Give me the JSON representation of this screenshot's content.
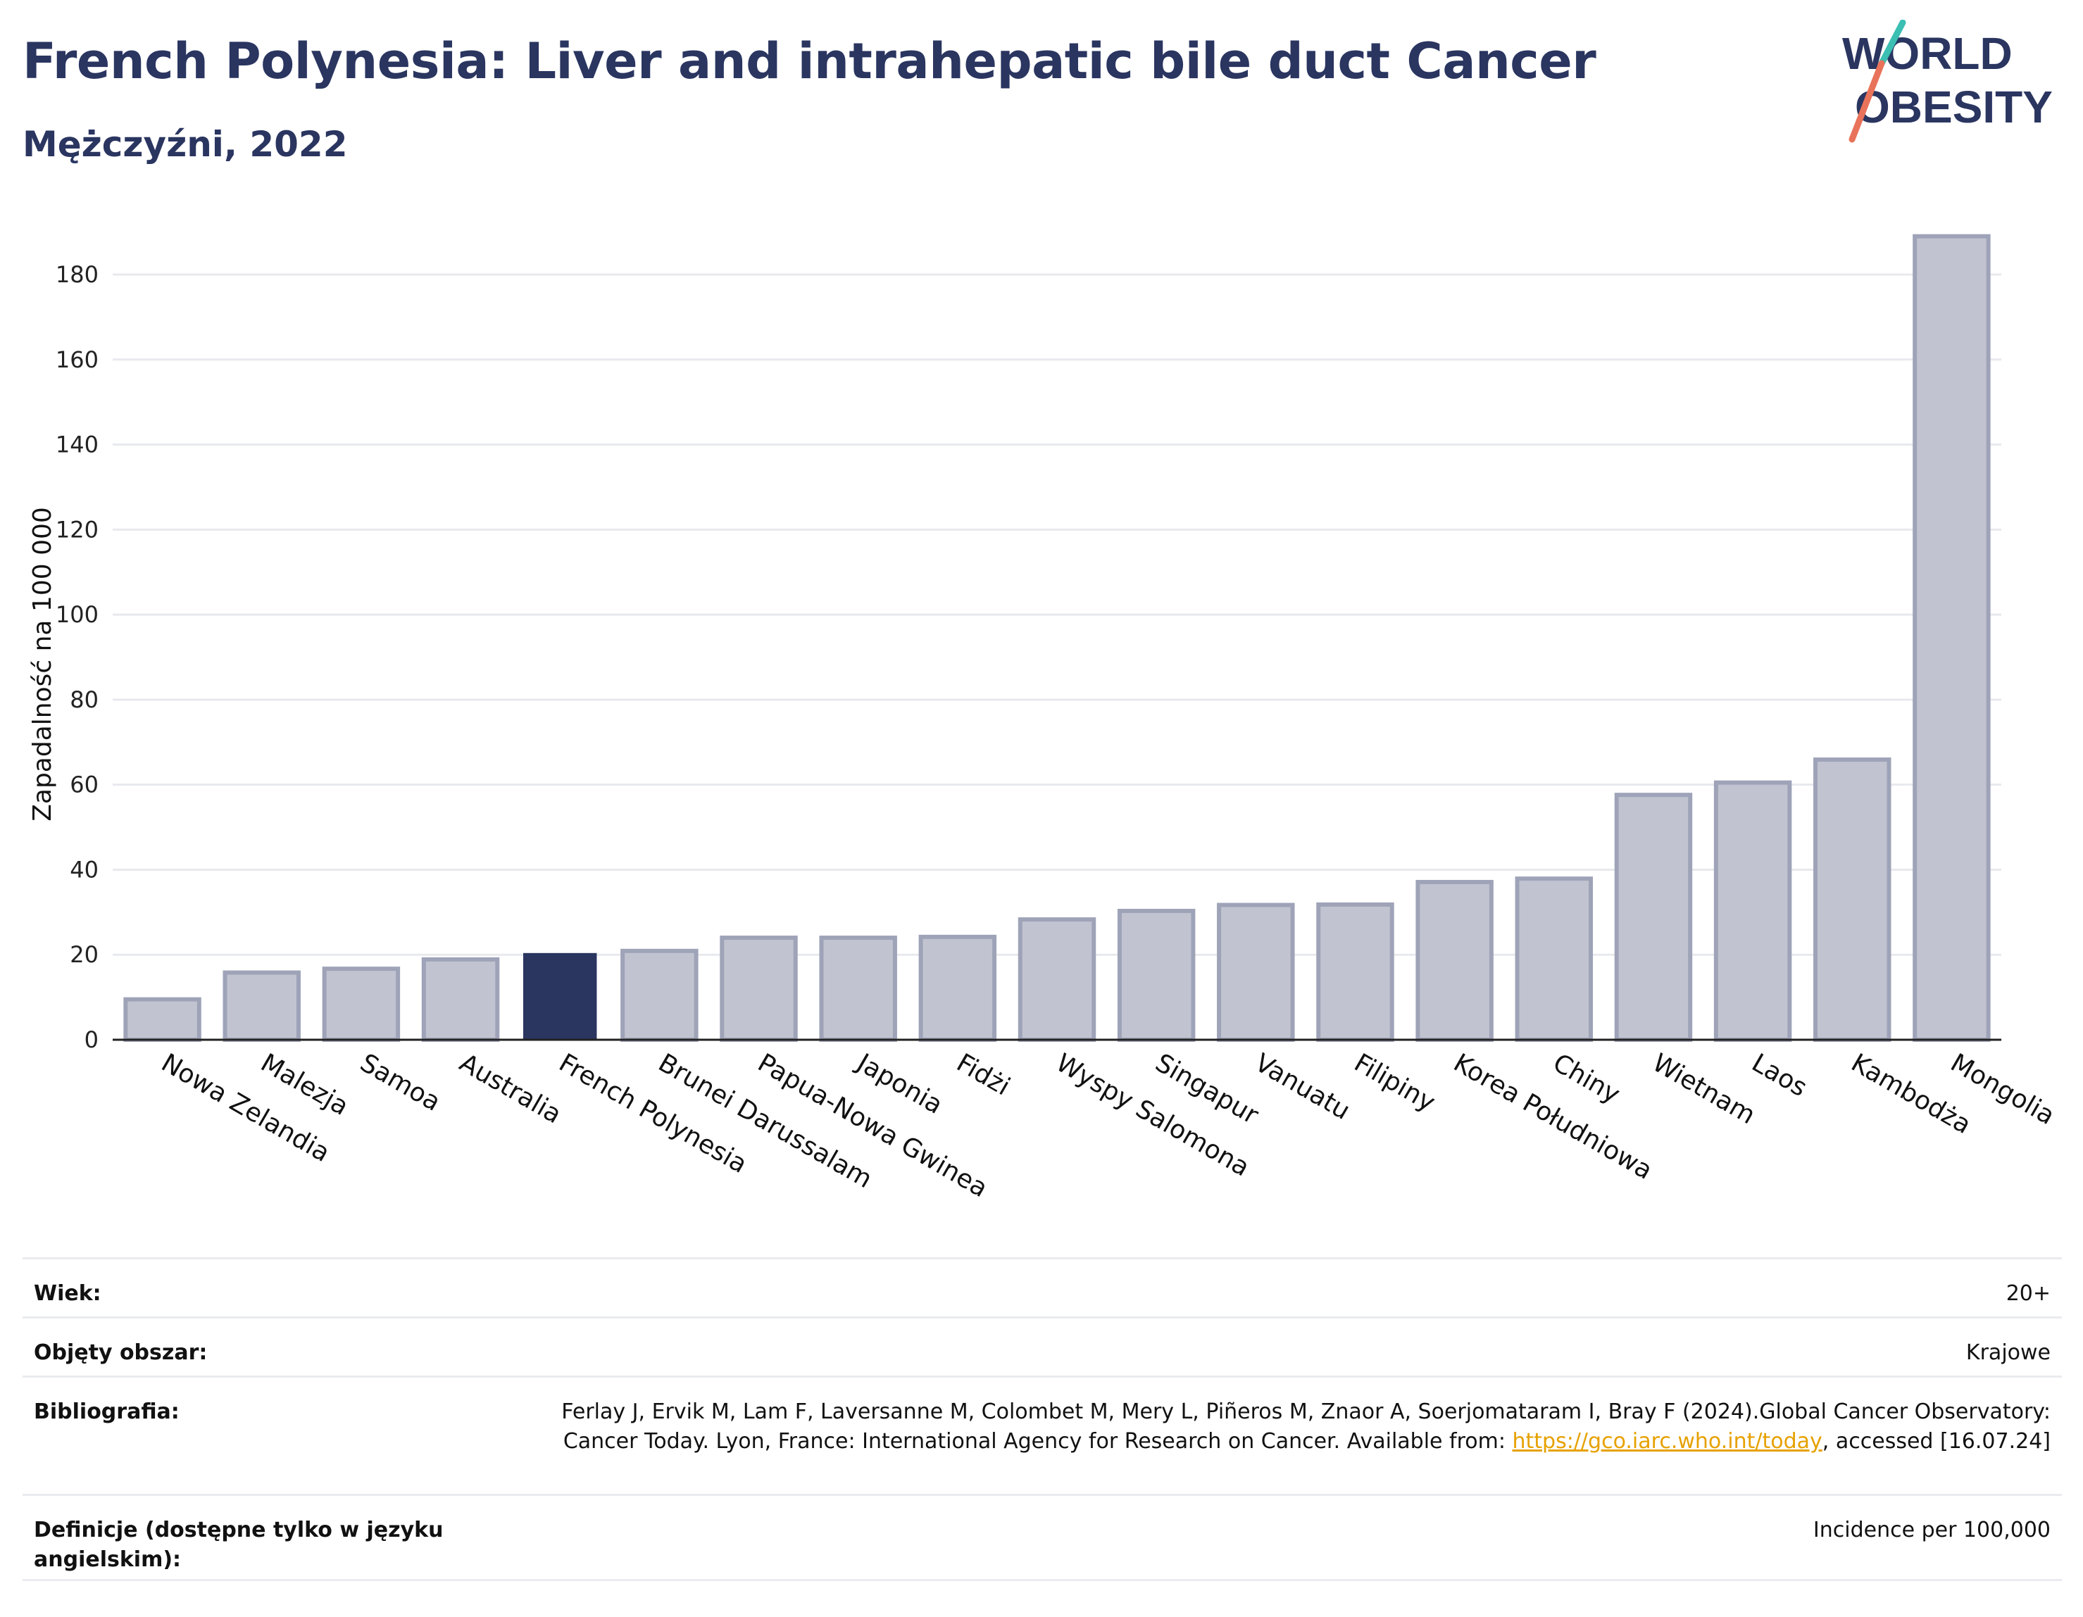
{
  "title": "French Polynesia: Liver and intrahepatic bile duct Cancer",
  "subtitle": "Mężczyźni, 2022",
  "logo": {
    "line1": "WORLD",
    "line2": "OBESITY",
    "colors": {
      "text": "#2a3560",
      "slash_teal": "#3bbfb2",
      "slash_coral": "#e8735a"
    }
  },
  "colors": {
    "highlight": "#2a3560",
    "bar_fill": "#c1c4d0",
    "bar_stroke": "#9ea3b8",
    "grid": "#e8e9ee",
    "axis": "#222222"
  },
  "chart_data": {
    "type": "bar",
    "ylabel": "Zapadalność na 100 000",
    "xlabel": "",
    "ylim": [
      0,
      190
    ],
    "yticks": [
      0,
      20,
      40,
      60,
      80,
      100,
      120,
      140,
      160,
      180
    ],
    "grid": true,
    "highlight": "French Polynesia",
    "categories": [
      "Nowa Zelandia",
      "Malezja",
      "Samoa",
      "Australia",
      "French Polynesia",
      "Brunei Darussalam",
      "Papua-Nowa Gwinea",
      "Japonia",
      "Fidżi",
      "Wyspy Salomona",
      "Singapur",
      "Vanuatu",
      "Filipiny",
      "Korea Południowa",
      "Chiny",
      "Wietnam",
      "Laos",
      "Kambodża",
      "Mongolia"
    ],
    "values": [
      9.5,
      15.8,
      16.7,
      18.9,
      20.4,
      20.9,
      24.0,
      24.0,
      24.2,
      28.3,
      30.3,
      31.7,
      31.8,
      37.1,
      37.9,
      57.6,
      60.5,
      65.9,
      189.0
    ]
  },
  "meta": [
    {
      "label": "Wiek:",
      "value": "20+"
    },
    {
      "label": "Objęty obszar:",
      "value": "Krajowe"
    },
    {
      "label": "Bibliografia:",
      "value_parts": {
        "before": "Ferlay J, Ervik M, Lam F, Laversanne M, Colombet M, Mery L, Piñeros M, Znaor A, Soerjomataram I, Bray F (2024).Global Cancer Observatory: Cancer Today. Lyon, France: International Agency for Research on Cancer. Available from: ",
        "link": "https://gco.iarc.who.int/today",
        "after": ", accessed [16.07.24]"
      }
    },
    {
      "label": "Definicje (dostępne tylko w języku angielskim):",
      "value": "Incidence per 100,000"
    }
  ]
}
